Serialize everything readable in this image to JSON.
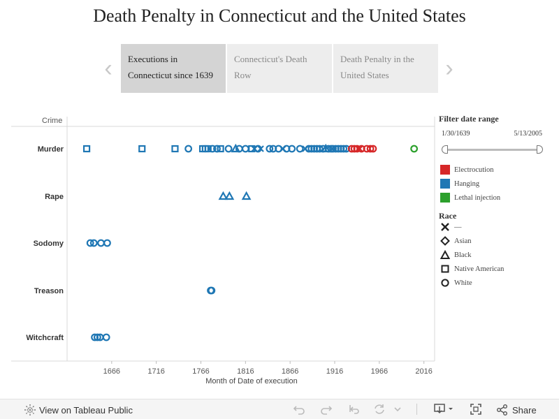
{
  "title": "Death Penalty in Connecticut and the United States",
  "story": {
    "points": [
      {
        "label": "Executions in Connecticut since 1639"
      },
      {
        "label": "Connecticut's Death Row"
      },
      {
        "label": "Death Penalty in the United States"
      }
    ]
  },
  "filter": {
    "title": "Filter date range",
    "start": "1/30/1639",
    "end": "5/13/2005"
  },
  "legend_method": [
    {
      "label": "Electrocution",
      "color": "#d62728"
    },
    {
      "label": "Hanging",
      "color": "#1f77b4"
    },
    {
      "label": "Lethal injection",
      "color": "#2ca02c"
    }
  ],
  "legend_race": {
    "title": "Race",
    "items": [
      {
        "label": "—",
        "shape": "x"
      },
      {
        "label": "Asian",
        "shape": "diamond"
      },
      {
        "label": "Black",
        "shape": "triangle"
      },
      {
        "label": "Native American",
        "shape": "square"
      },
      {
        "label": "White",
        "shape": "circle"
      }
    ]
  },
  "footer": {
    "view_label": "View on Tableau Public",
    "share_label": "Share"
  },
  "chart_data": {
    "type": "scatter",
    "title": "",
    "xlabel": "Month of Date of execution",
    "ylabel": "Crime",
    "xlim": [
      1616,
      2028
    ],
    "x_ticks": [
      1666,
      1716,
      1766,
      1816,
      1866,
      1916,
      1966,
      2016
    ],
    "categories": [
      "Murder",
      "Rape",
      "Sodomy",
      "Treason",
      "Witchcraft"
    ],
    "colors": {
      "Hanging": "#1f77b4",
      "Electrocution": "#d62728",
      "Lethal injection": "#2ca02c"
    },
    "points": [
      {
        "crime": "Murder",
        "year": 1638,
        "race": "Native American",
        "method": "Hanging"
      },
      {
        "crime": "Murder",
        "year": 1700,
        "race": "Native American",
        "method": "Hanging"
      },
      {
        "crime": "Murder",
        "year": 1737,
        "race": "Native American",
        "method": "Hanging"
      },
      {
        "crime": "Murder",
        "year": 1752,
        "race": "White",
        "method": "Hanging"
      },
      {
        "crime": "Murder",
        "year": 1768,
        "race": "Native American",
        "method": "Hanging"
      },
      {
        "crime": "Murder",
        "year": 1771,
        "race": "Native American",
        "method": "Hanging"
      },
      {
        "crime": "Murder",
        "year": 1774,
        "race": "Native American",
        "method": "Hanging"
      },
      {
        "crime": "Murder",
        "year": 1779,
        "race": "White",
        "method": "Hanging"
      },
      {
        "crime": "Murder",
        "year": 1784,
        "race": "White",
        "method": "Hanging"
      },
      {
        "crime": "Murder",
        "year": 1788,
        "race": "Native American",
        "method": "Hanging"
      },
      {
        "crime": "Murder",
        "year": 1797,
        "race": "White",
        "method": "Hanging"
      },
      {
        "crime": "Murder",
        "year": 1805,
        "race": "Black",
        "method": "Hanging"
      },
      {
        "crime": "Murder",
        "year": 1809,
        "race": "White",
        "method": "Hanging"
      },
      {
        "crime": "Murder",
        "year": 1816,
        "race": "White",
        "method": "Hanging"
      },
      {
        "crime": "Murder",
        "year": 1823,
        "race": "Native American",
        "method": "Hanging"
      },
      {
        "crime": "Murder",
        "year": 1826,
        "race": "—",
        "method": "Hanging"
      },
      {
        "crime": "Murder",
        "year": 1830,
        "race": "White",
        "method": "Hanging"
      },
      {
        "crime": "Murder",
        "year": 1833,
        "race": "—",
        "method": "Hanging"
      },
      {
        "crime": "Murder",
        "year": 1843,
        "race": "White",
        "method": "Hanging"
      },
      {
        "crime": "Murder",
        "year": 1847,
        "race": "White",
        "method": "Hanging"
      },
      {
        "crime": "Murder",
        "year": 1853,
        "race": "White",
        "method": "Hanging"
      },
      {
        "crime": "Murder",
        "year": 1858,
        "race": "—",
        "method": "Hanging"
      },
      {
        "crime": "Murder",
        "year": 1862,
        "race": "White",
        "method": "Hanging"
      },
      {
        "crime": "Murder",
        "year": 1868,
        "race": "White",
        "method": "Hanging"
      },
      {
        "crime": "Murder",
        "year": 1877,
        "race": "White",
        "method": "Hanging"
      },
      {
        "crime": "Murder",
        "year": 1883,
        "race": "—",
        "method": "Hanging"
      },
      {
        "crime": "Murder",
        "year": 1887,
        "race": "White",
        "method": "Hanging"
      },
      {
        "crime": "Murder",
        "year": 1890,
        "race": "White",
        "method": "Hanging"
      },
      {
        "crime": "Murder",
        "year": 1893,
        "race": "White",
        "method": "Hanging"
      },
      {
        "crime": "Murder",
        "year": 1896,
        "race": "White",
        "method": "Hanging"
      },
      {
        "crime": "Murder",
        "year": 1899,
        "race": "White",
        "method": "Hanging"
      },
      {
        "crime": "Murder",
        "year": 1903,
        "race": "White",
        "method": "Hanging"
      },
      {
        "crime": "Murder",
        "year": 1906,
        "race": "Black",
        "method": "Hanging"
      },
      {
        "crime": "Murder",
        "year": 1909,
        "race": "White",
        "method": "Hanging"
      },
      {
        "crime": "Murder",
        "year": 1912,
        "race": "White",
        "method": "Hanging"
      },
      {
        "crime": "Murder",
        "year": 1914,
        "race": "White",
        "method": "Hanging"
      },
      {
        "crime": "Murder",
        "year": 1917,
        "race": "White",
        "method": "Hanging"
      },
      {
        "crime": "Murder",
        "year": 1920,
        "race": "White",
        "method": "Hanging"
      },
      {
        "crime": "Murder",
        "year": 1923,
        "race": "White",
        "method": "Hanging"
      },
      {
        "crime": "Murder",
        "year": 1926,
        "race": "White",
        "method": "Hanging"
      },
      {
        "crime": "Murder",
        "year": 1929,
        "race": "White",
        "method": "Hanging"
      },
      {
        "crime": "Murder",
        "year": 1935,
        "race": "White",
        "method": "Electrocution"
      },
      {
        "crime": "Murder",
        "year": 1938,
        "race": "White",
        "method": "Electrocution"
      },
      {
        "crime": "Murder",
        "year": 1941,
        "race": "White",
        "method": "Electrocution"
      },
      {
        "crime": "Murder",
        "year": 1944,
        "race": "—",
        "method": "Electrocution"
      },
      {
        "crime": "Murder",
        "year": 1946,
        "race": "White",
        "method": "Electrocution"
      },
      {
        "crime": "Murder",
        "year": 1952,
        "race": "White",
        "method": "Electrocution"
      },
      {
        "crime": "Murder",
        "year": 1956,
        "race": "White",
        "method": "Electrocution"
      },
      {
        "crime": "Murder",
        "year": 1959,
        "race": "White",
        "method": "Electrocution"
      },
      {
        "crime": "Murder",
        "year": 2005,
        "race": "White",
        "method": "Lethal injection"
      },
      {
        "crime": "Rape",
        "year": 1791,
        "race": "Black",
        "method": "Hanging"
      },
      {
        "crime": "Rape",
        "year": 1798,
        "race": "Black",
        "method": "Hanging"
      },
      {
        "crime": "Rape",
        "year": 1817,
        "race": "Black",
        "method": "Hanging"
      },
      {
        "crime": "Sodomy",
        "year": 1642,
        "race": "White",
        "method": "Hanging"
      },
      {
        "crime": "Sodomy",
        "year": 1646,
        "race": "White",
        "method": "Hanging"
      },
      {
        "crime": "Sodomy",
        "year": 1654,
        "race": "White",
        "method": "Hanging"
      },
      {
        "crime": "Sodomy",
        "year": 1661,
        "race": "White",
        "method": "Hanging"
      },
      {
        "crime": "Treason",
        "year": 1777,
        "race": "White",
        "method": "Hanging"
      },
      {
        "crime": "Treason",
        "year": 1778,
        "race": "White",
        "method": "Hanging"
      },
      {
        "crime": "Witchcraft",
        "year": 1647,
        "race": "White",
        "method": "Hanging"
      },
      {
        "crime": "Witchcraft",
        "year": 1650,
        "race": "White",
        "method": "Hanging"
      },
      {
        "crime": "Witchcraft",
        "year": 1653,
        "race": "White",
        "method": "Hanging"
      },
      {
        "crime": "Witchcraft",
        "year": 1660,
        "race": "White",
        "method": "Hanging"
      }
    ]
  }
}
